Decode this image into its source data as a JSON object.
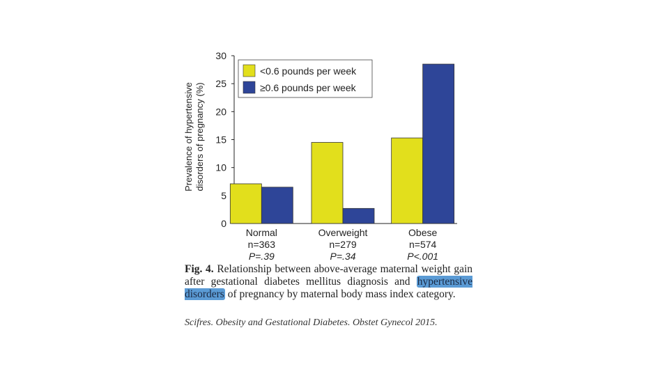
{
  "chart_data": {
    "type": "bar",
    "categories": [
      "Normal",
      "Overweight",
      "Obese"
    ],
    "category_sublabels": [
      {
        "n": "n=363",
        "p": "P=.39"
      },
      {
        "n": "n=279",
        "p": "P=.34"
      },
      {
        "n": "n=574",
        "p": "P<.001"
      }
    ],
    "series": [
      {
        "name": "<0.6 pounds per week",
        "values": [
          7.1,
          14.5,
          15.3
        ],
        "color": "#e2df1c"
      },
      {
        "name": "≥0.6 pounds per week",
        "values": [
          6.5,
          2.7,
          28.5
        ],
        "color": "#2e4598"
      }
    ],
    "ylabel_lines": [
      "Prevalence of hypertensive",
      "disorders of pregnancy (%)"
    ],
    "ylim": [
      0,
      30
    ],
    "yticks": [
      0,
      5,
      10,
      15,
      20,
      25,
      30
    ],
    "legend_position": "top-left",
    "grid": false
  },
  "caption": {
    "fig_label": "Fig. 4.",
    "before_highlight": "Relationship between above-average maternal weight gain after gestational diabetes mellitus diagnosis and ",
    "highlight": "hypertensive disorders",
    "after_highlight": " of pregnancy by maternal body mass index category."
  },
  "citation": "Scifres. Obesity and Gestational Diabetes. Obstet Gynecol 2015."
}
